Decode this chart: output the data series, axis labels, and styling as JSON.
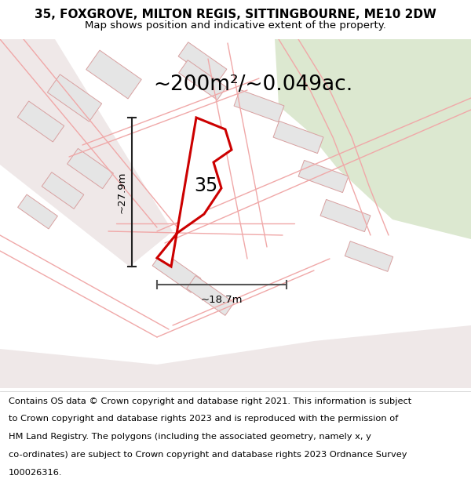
{
  "title_line1": "35, FOXGROVE, MILTON REGIS, SITTINGBOURNE, ME10 2DW",
  "title_line2": "Map shows position and indicative extent of the property.",
  "area_text": "~200m²/~0.049ac.",
  "label_35": "35",
  "dim_height": "~27.9m",
  "dim_width": "~18.7m",
  "footer_lines": [
    "Contains OS data © Crown copyright and database right 2021. This information is subject",
    "to Crown copyright and database rights 2023 and is reproduced with the permission of",
    "HM Land Registry. The polygons (including the associated geometry, namely x, y",
    "co-ordinates) are subject to Crown copyright and database rights 2023 Ordnance Survey",
    "100026316."
  ],
  "bg_color": "#ffffff",
  "map_bg": "#f6f6f6",
  "green_color": "#dce8d0",
  "plot_edge": "#cc0000",
  "road_line": "#f0a8a8",
  "building_fill": "#e5e5e5",
  "building_edge": "#d8a0a0",
  "dim_color": "#222222",
  "hdim_color": "#555555",
  "title_fontsize": 11,
  "subtitle_fontsize": 9.5,
  "area_fontsize": 19,
  "label_fontsize": 17,
  "footer_fontsize": 8.2,
  "dim_fontsize": 9.5
}
